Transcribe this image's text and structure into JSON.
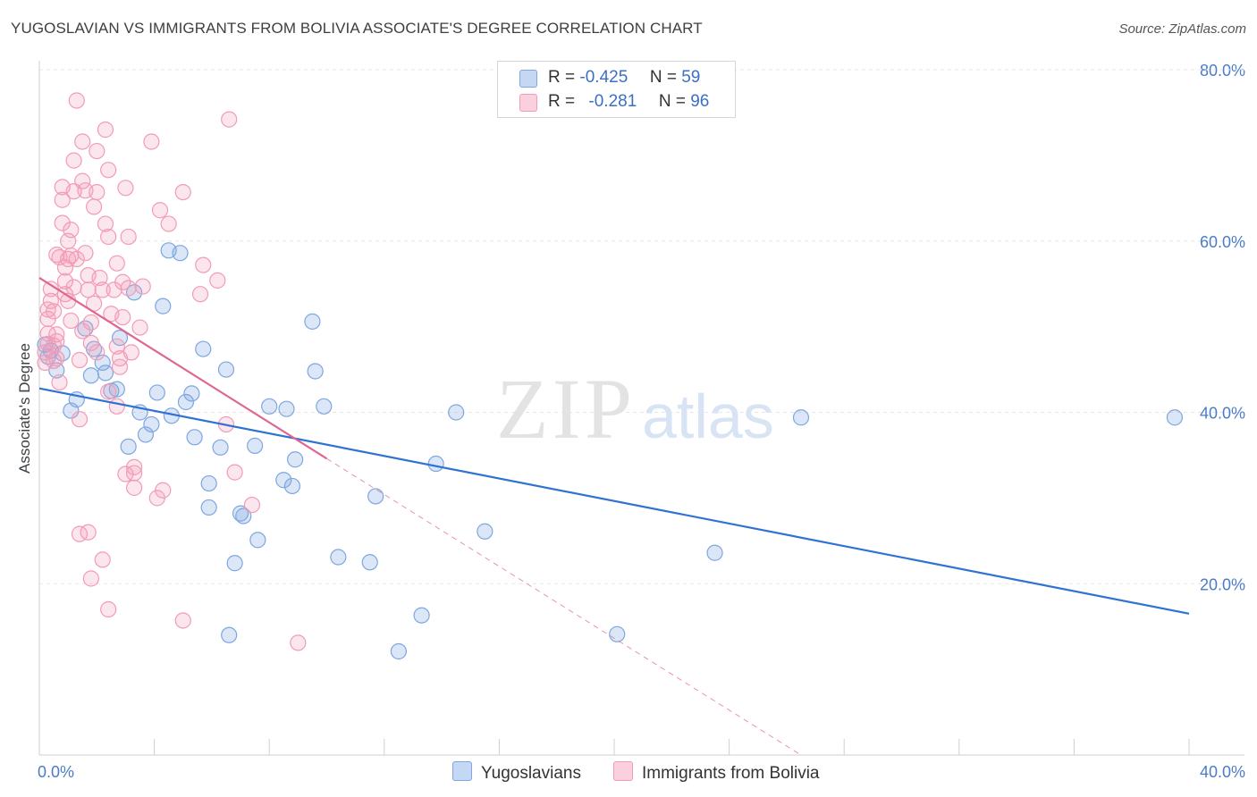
{
  "header": {
    "title": "YUGOSLAVIAN VS IMMIGRANTS FROM BOLIVIA ASSOCIATE'S DEGREE CORRELATION CHART",
    "source": "Source: ZipAtlas.com"
  },
  "watermark": {
    "zip": "ZIP",
    "atlas": "atlas"
  },
  "legend": {
    "rows": [
      {
        "r_label": "R =",
        "r_value": "-0.425",
        "n_label": "N =",
        "n_value": "59",
        "color": "#7ea6e0"
      },
      {
        "r_label": "R =",
        "r_value": "-0.281",
        "n_label": "N =",
        "n_value": "96",
        "color": "#f29bb6"
      }
    ]
  },
  "bottom_legend": {
    "yugoslavians": "Yugoslavians",
    "bolivia": "Immigrants from Bolivia"
  },
  "chart_data": {
    "type": "scatter",
    "xlabel": "",
    "ylabel": "Associate's Degree",
    "xlim": [
      0,
      40
    ],
    "ylim": [
      0,
      80
    ],
    "x_tick_labels": [
      "0.0%",
      "40.0%"
    ],
    "y_tick_labels": [
      "20.0%",
      "40.0%",
      "60.0%",
      "80.0%"
    ],
    "y_ticks": [
      20,
      40,
      60,
      80
    ],
    "grid": "horizontal dashed",
    "legend_position": "top-center",
    "series": [
      {
        "name": "Yugoslavians",
        "color": "#7ea6e0",
        "line_color": "#2f72d4",
        "trend": {
          "x": [
            0,
            40
          ],
          "y": [
            42.8,
            16.5
          ]
        },
        "points": [
          [
            0.2,
            47.9
          ],
          [
            0.3,
            46.5
          ],
          [
            0.4,
            47.2
          ],
          [
            0.6,
            44.9
          ],
          [
            0.8,
            46.9
          ],
          [
            1.1,
            40.2
          ],
          [
            1.3,
            41.5
          ],
          [
            1.6,
            49.8
          ],
          [
            1.8,
            44.3
          ],
          [
            1.9,
            47.4
          ],
          [
            2.2,
            45.8
          ],
          [
            2.3,
            44.6
          ],
          [
            2.5,
            42.5
          ],
          [
            2.7,
            42.7
          ],
          [
            2.8,
            48.7
          ],
          [
            3.1,
            36.0
          ],
          [
            3.3,
            54.0
          ],
          [
            3.5,
            40.0
          ],
          [
            3.7,
            37.4
          ],
          [
            3.9,
            38.6
          ],
          [
            4.1,
            42.3
          ],
          [
            4.3,
            52.4
          ],
          [
            4.6,
            39.6
          ],
          [
            4.5,
            58.9
          ],
          [
            4.9,
            58.6
          ],
          [
            5.1,
            41.2
          ],
          [
            5.3,
            42.2
          ],
          [
            5.4,
            37.1
          ],
          [
            5.7,
            47.4
          ],
          [
            5.9,
            31.7
          ],
          [
            5.9,
            28.9
          ],
          [
            6.3,
            35.9
          ],
          [
            6.5,
            45.0
          ],
          [
            6.6,
            14.0
          ],
          [
            6.8,
            22.4
          ],
          [
            7.0,
            28.2
          ],
          [
            7.1,
            27.9
          ],
          [
            7.5,
            36.1
          ],
          [
            7.6,
            25.1
          ],
          [
            8.0,
            40.7
          ],
          [
            8.5,
            32.1
          ],
          [
            8.6,
            40.4
          ],
          [
            8.8,
            31.4
          ],
          [
            8.9,
            34.5
          ],
          [
            9.5,
            50.6
          ],
          [
            9.6,
            44.8
          ],
          [
            9.9,
            40.7
          ],
          [
            10.4,
            23.1
          ],
          [
            11.5,
            22.5
          ],
          [
            11.7,
            30.2
          ],
          [
            12.5,
            12.1
          ],
          [
            13.3,
            16.3
          ],
          [
            13.8,
            34.0
          ],
          [
            14.5,
            40.0
          ],
          [
            15.5,
            26.1
          ],
          [
            20.1,
            14.1
          ],
          [
            23.5,
            23.6
          ],
          [
            26.5,
            39.4
          ],
          [
            39.5,
            39.4
          ]
        ]
      },
      {
        "name": "Immigrants from Bolivia",
        "color": "#f29bb6",
        "line_color": "#e0658f",
        "trend": {
          "x": [
            0,
            10
          ],
          "y": [
            55.7,
            34.6
          ]
        },
        "trend_dashed": {
          "x": [
            10,
            26.5
          ],
          "y": [
            34.6,
            0.0
          ]
        },
        "points": [
          [
            0.2,
            45.8
          ],
          [
            0.2,
            47.0
          ],
          [
            0.3,
            48.0
          ],
          [
            0.3,
            49.2
          ],
          [
            0.3,
            50.9
          ],
          [
            0.3,
            52.0
          ],
          [
            0.4,
            53.0
          ],
          [
            0.4,
            54.4
          ],
          [
            0.5,
            46.0
          ],
          [
            0.5,
            47.8
          ],
          [
            0.5,
            51.8
          ],
          [
            0.6,
            49.1
          ],
          [
            0.6,
            48.3
          ],
          [
            0.6,
            58.4
          ],
          [
            0.7,
            43.5
          ],
          [
            0.7,
            58.1
          ],
          [
            0.8,
            62.1
          ],
          [
            0.8,
            64.8
          ],
          [
            0.8,
            66.3
          ],
          [
            0.9,
            55.3
          ],
          [
            0.9,
            56.9
          ],
          [
            1.0,
            53.0
          ],
          [
            1.0,
            57.9
          ],
          [
            1.0,
            60.0
          ],
          [
            1.1,
            58.3
          ],
          [
            1.1,
            61.3
          ],
          [
            1.2,
            54.6
          ],
          [
            1.2,
            65.8
          ],
          [
            1.2,
            69.4
          ],
          [
            1.3,
            76.4
          ],
          [
            1.3,
            57.9
          ],
          [
            1.4,
            46.1
          ],
          [
            1.4,
            39.2
          ],
          [
            1.5,
            71.6
          ],
          [
            1.5,
            67.0
          ],
          [
            1.6,
            58.6
          ],
          [
            1.6,
            65.9
          ],
          [
            1.7,
            56.0
          ],
          [
            1.7,
            54.3
          ],
          [
            1.8,
            48.1
          ],
          [
            1.8,
            50.5
          ],
          [
            1.9,
            52.7
          ],
          [
            1.9,
            64.0
          ],
          [
            2.0,
            70.5
          ],
          [
            2.0,
            65.7
          ],
          [
            2.1,
            55.7
          ],
          [
            2.2,
            54.3
          ],
          [
            2.3,
            62.0
          ],
          [
            2.3,
            73.0
          ],
          [
            2.4,
            42.4
          ],
          [
            2.4,
            60.5
          ],
          [
            2.4,
            68.3
          ],
          [
            2.5,
            51.5
          ],
          [
            2.6,
            54.3
          ],
          [
            2.7,
            57.4
          ],
          [
            2.7,
            47.7
          ],
          [
            2.7,
            40.7
          ],
          [
            2.8,
            45.3
          ],
          [
            2.8,
            46.3
          ],
          [
            2.9,
            51.1
          ],
          [
            2.9,
            55.2
          ],
          [
            3.0,
            66.2
          ],
          [
            3.0,
            32.8
          ],
          [
            3.1,
            60.5
          ],
          [
            3.1,
            54.5
          ],
          [
            3.2,
            47.0
          ],
          [
            3.3,
            31.2
          ],
          [
            3.3,
            33.6
          ],
          [
            3.3,
            32.9
          ],
          [
            3.5,
            49.9
          ],
          [
            3.6,
            54.7
          ],
          [
            3.9,
            71.6
          ],
          [
            4.1,
            30.0
          ],
          [
            4.2,
            63.6
          ],
          [
            4.3,
            30.9
          ],
          [
            4.5,
            62.0
          ],
          [
            5.0,
            65.7
          ],
          [
            5.0,
            15.7
          ],
          [
            5.6,
            53.8
          ],
          [
            5.7,
            57.2
          ],
          [
            6.2,
            55.4
          ],
          [
            6.6,
            74.2
          ],
          [
            6.5,
            38.6
          ],
          [
            6.8,
            33.0
          ],
          [
            7.4,
            29.2
          ],
          [
            9.0,
            13.1
          ],
          [
            1.4,
            25.8
          ],
          [
            1.7,
            26.0
          ],
          [
            1.8,
            20.6
          ],
          [
            2.2,
            22.8
          ],
          [
            2.4,
            17.0
          ],
          [
            0.9,
            53.8
          ],
          [
            1.5,
            49.5
          ],
          [
            0.6,
            46.3
          ],
          [
            1.1,
            50.7
          ],
          [
            2.0,
            47.0
          ]
        ]
      }
    ]
  }
}
